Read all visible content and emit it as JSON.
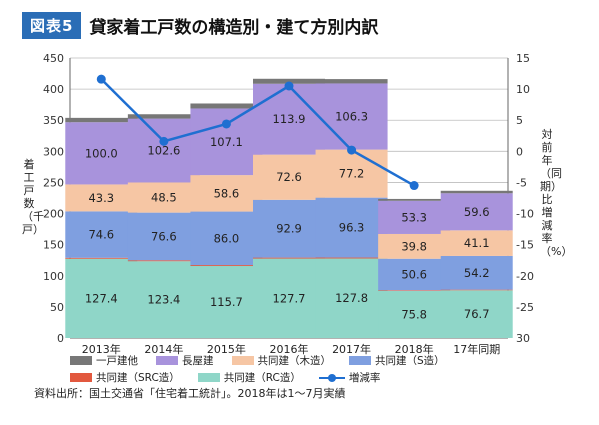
{
  "header": {
    "badge": "図表5",
    "title": "貸家着工戸数の構造別・建て方別内訳"
  },
  "chart_data": {
    "type": "bar",
    "stacked": true,
    "categories": [
      "2013年",
      "2014年",
      "2015年",
      "2016年",
      "2017年",
      "2018年",
      "17年同期"
    ],
    "ylabel": "着工戸数（千戸）",
    "y2label": "対前年（同期）比増減率（%）",
    "ylim": [
      0,
      450
    ],
    "y2lim": [
      30,
      -15
    ],
    "yticks": [
      "0",
      "50",
      "100",
      "150",
      "200",
      "250",
      "300",
      "350",
      "400",
      "450"
    ],
    "y2ticks": [
      "15",
      "10",
      "5",
      "0",
      "-5",
      "-10",
      "-15",
      "-20",
      "-25",
      "30"
    ],
    "series": [
      {
        "name": "共同建（RC造）",
        "color": "#8fd6c8",
        "values": [
          127.4,
          123.4,
          115.7,
          127.7,
          127.8,
          75.8,
          76.7
        ],
        "labels": [
          "127.4",
          "123.4",
          "115.7",
          "127.7",
          "127.8",
          "75.8",
          "76.7"
        ]
      },
      {
        "name": "共同建（SRC造）",
        "color": "#e2583e",
        "values": [
          1.5,
          1.5,
          1.5,
          1.5,
          1.5,
          1.0,
          1.0
        ],
        "labels": []
      },
      {
        "name": "共同建（S造）",
        "color": "#7f9fe0",
        "values": [
          74.6,
          76.6,
          86.0,
          92.9,
          96.3,
          50.6,
          54.2
        ],
        "labels": [
          "74.6",
          "76.6",
          "86.0",
          "92.9",
          "96.3",
          "50.6",
          "54.2"
        ]
      },
      {
        "name": "共同建（木造）",
        "color": "#f6c6a4",
        "values": [
          43.3,
          48.5,
          58.6,
          72.6,
          77.2,
          39.8,
          41.1
        ],
        "labels": [
          "43.3",
          "48.5",
          "58.6",
          "72.6",
          "77.2",
          "39.8",
          "41.1"
        ]
      },
      {
        "name": "長屋建",
        "color": "#a893dc",
        "values": [
          100.0,
          102.6,
          107.1,
          113.9,
          106.3,
          53.3,
          59.6
        ],
        "labels": [
          "100.0",
          "102.6",
          "107.1",
          "113.9",
          "106.3",
          "53.3",
          "59.6"
        ]
      },
      {
        "name": "一戸建他",
        "color": "#777777",
        "values": [
          7,
          7,
          8,
          8,
          7,
          3,
          4
        ],
        "labels": []
      }
    ],
    "line": {
      "name": "増減率",
      "color": "#1f6fd1",
      "values": [
        11.6,
        1.6,
        4.4,
        10.5,
        0.2,
        -5.5
      ]
    },
    "grid": true
  },
  "legend": {
    "row1": [
      {
        "label": "一戸建他",
        "color": "#777777"
      },
      {
        "label": "長屋建",
        "color": "#a893dc"
      },
      {
        "label": "共同建（木造）",
        "color": "#f6c6a4"
      },
      {
        "label": "共同建（S造）",
        "color": "#7f9fe0"
      }
    ],
    "row2": [
      {
        "label": "共同建（SRC造）",
        "color": "#e2583e"
      },
      {
        "label": "共同建（RC造）",
        "color": "#8fd6c8"
      }
    ],
    "line_label": "増減率"
  },
  "source": "資料出所：国土交通省「住宅着工統計」。2018年は1〜7月実績"
}
